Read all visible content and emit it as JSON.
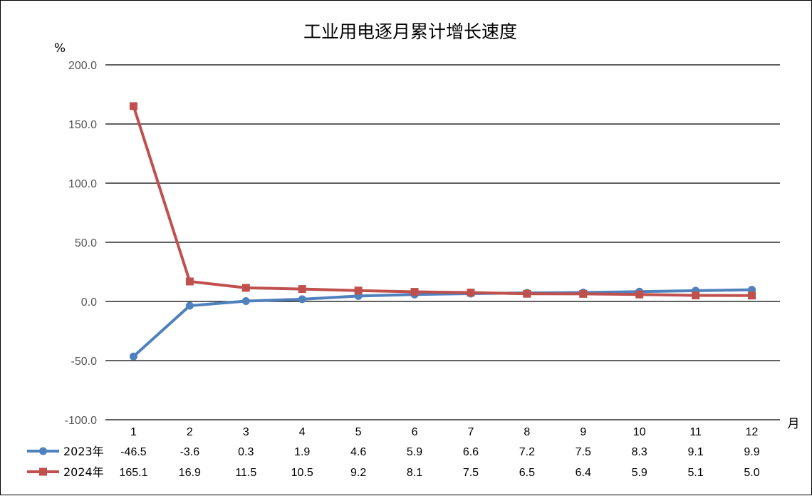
{
  "chart_data": {
    "type": "line",
    "title": "工业用电逐月累计增长速度",
    "ylabel": "%",
    "xlabel": "月",
    "categories": [
      "1",
      "2",
      "3",
      "4",
      "5",
      "6",
      "7",
      "8",
      "9",
      "10",
      "11",
      "12"
    ],
    "ylim": [
      -100,
      200
    ],
    "yticks": [
      "200.0",
      "150.0",
      "100.0",
      "50.0",
      "0.0",
      "-50.0",
      "-100.0"
    ],
    "ytick_values": [
      200,
      150,
      100,
      50,
      0,
      -50,
      -100
    ],
    "grid": true,
    "legend_position": "bottom data table",
    "series": [
      {
        "name": "2023年",
        "color": "#4F81BD",
        "marker": "circle",
        "values": [
          -46.5,
          -3.6,
          0.3,
          1.9,
          4.6,
          5.9,
          6.6,
          7.2,
          7.5,
          8.3,
          9.1,
          9.9
        ],
        "labels": [
          "-46.5",
          "-3.6",
          "0.3",
          "1.9",
          "4.6",
          "5.9",
          "6.6",
          "7.2",
          "7.5",
          "8.3",
          "9.1",
          "9.9"
        ]
      },
      {
        "name": "2024年",
        "color": "#C0504D",
        "marker": "square",
        "values": [
          165.1,
          16.9,
          11.5,
          10.5,
          9.2,
          8.1,
          7.5,
          6.5,
          6.4,
          5.9,
          5.1,
          5.0
        ],
        "labels": [
          "165.1",
          "16.9",
          "11.5",
          "10.5",
          "9.2",
          "8.1",
          "7.5",
          "6.5",
          "6.4",
          "5.9",
          "5.1",
          "5.0"
        ]
      }
    ]
  }
}
